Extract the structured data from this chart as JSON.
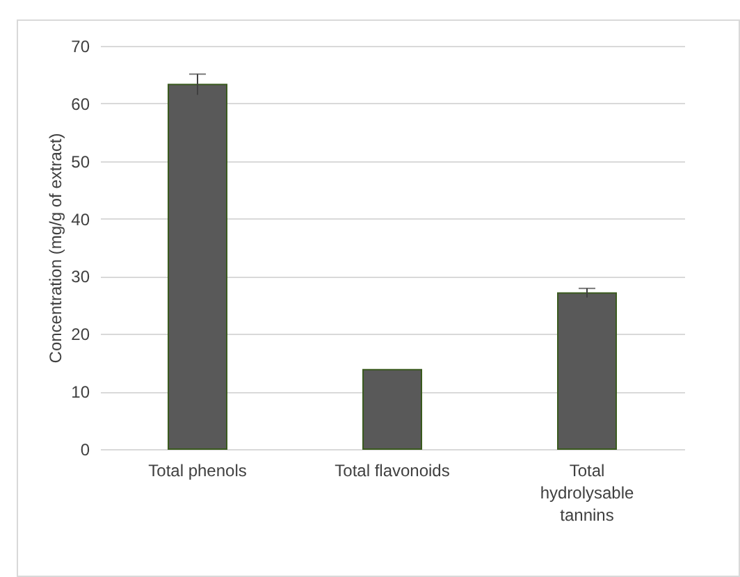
{
  "chart_data": {
    "type": "bar",
    "ylabel": "Concentration (mg/g of extract)",
    "categories": [
      "Total phenols",
      "Total flavonoids",
      "Total hydrolysable tannins"
    ],
    "values": [
      63.3,
      13.8,
      27.1
    ],
    "errors": [
      1.8,
      null,
      0.8
    ],
    "color": "#595959",
    "ylim": [
      0,
      70
    ],
    "yticks": [
      0,
      10,
      20,
      30,
      40,
      50,
      60,
      70
    ],
    "grid": "y"
  }
}
